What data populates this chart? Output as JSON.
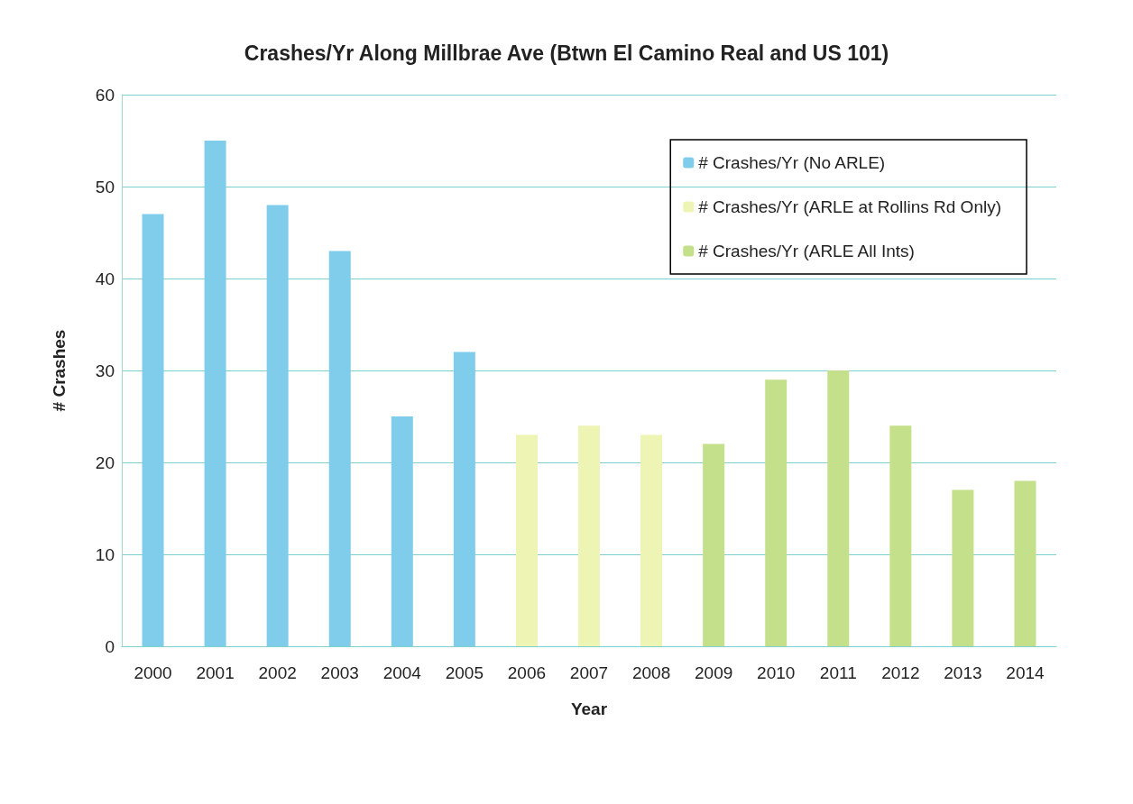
{
  "chart_data": {
    "type": "bar",
    "title": "Crashes/Yr Along Millbrae Ave (Btwn El Camino Real and US 101)",
    "xlabel": "Year",
    "ylabel": "# Crashes",
    "categories": [
      "2000",
      "2001",
      "2002",
      "2003",
      "2004",
      "2005",
      "2006",
      "2007",
      "2008",
      "2009",
      "2010",
      "2011",
      "2012",
      "2013",
      "2014"
    ],
    "series": [
      {
        "name": "# Crashes/Yr (No ARLE)",
        "color": "#7fcdea",
        "values": [
          47,
          55,
          48,
          43,
          25,
          32,
          null,
          null,
          null,
          null,
          null,
          null,
          null,
          null,
          null
        ]
      },
      {
        "name": "# Crashes/Yr (ARLE at Rollins Rd Only)",
        "color": "#eef5b4",
        "values": [
          null,
          null,
          null,
          null,
          null,
          null,
          23,
          24,
          23,
          null,
          null,
          null,
          null,
          null,
          null
        ]
      },
      {
        "name": "# Crashes/Yr (ARLE All Ints)",
        "color": "#c5e08a",
        "values": [
          null,
          null,
          null,
          null,
          null,
          null,
          null,
          null,
          null,
          22,
          29,
          30,
          24,
          17,
          18
        ]
      }
    ],
    "ylim": [
      0,
      60
    ],
    "yticks": [
      0,
      10,
      20,
      30,
      40,
      50,
      60
    ],
    "grid": "y",
    "legend": "top right"
  }
}
